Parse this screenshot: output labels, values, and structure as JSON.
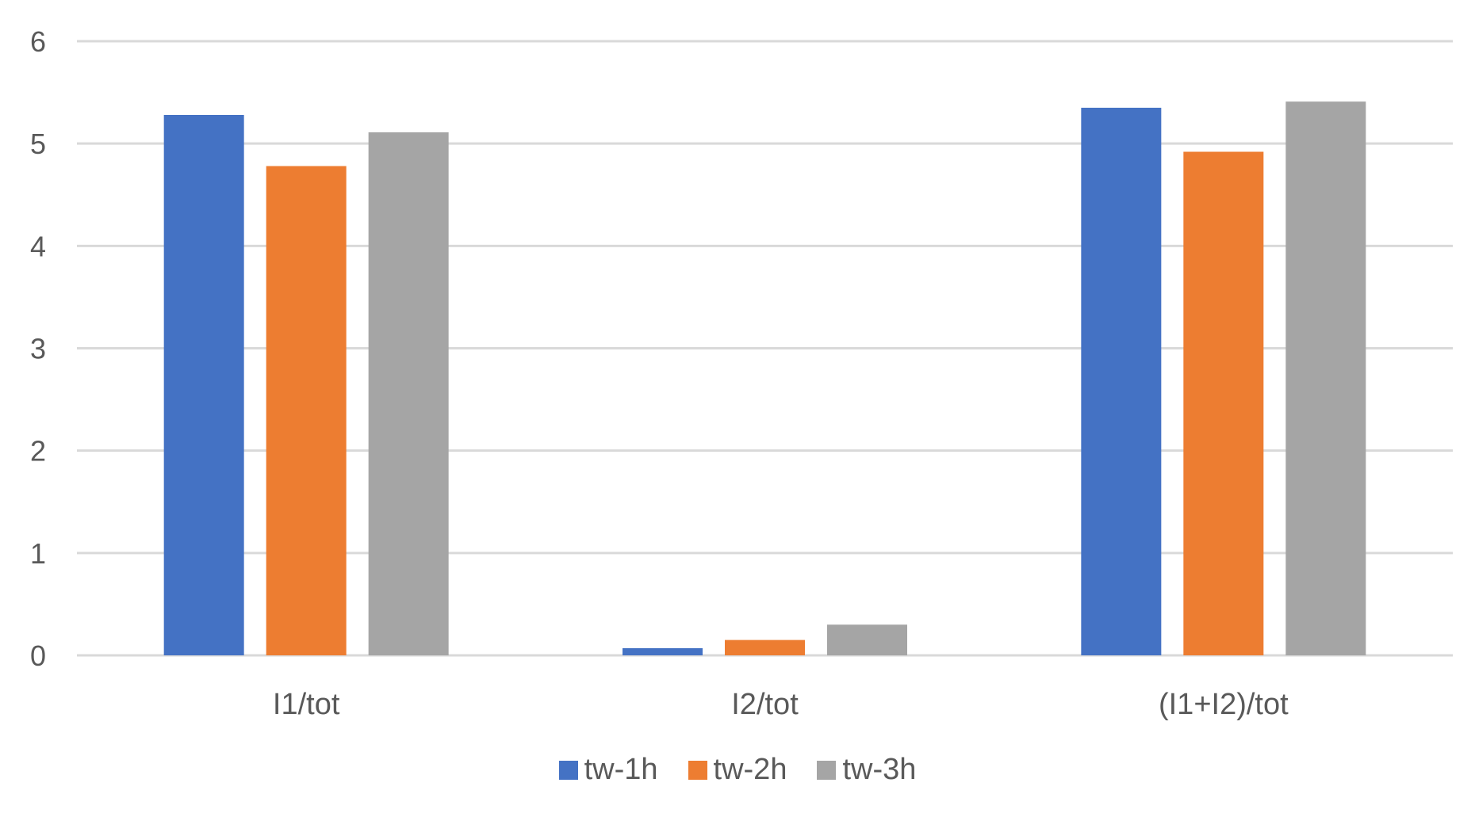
{
  "chart_data": {
    "type": "bar",
    "title": "",
    "xlabel": "",
    "ylabel": "",
    "categories": [
      "I1/tot",
      "I2/tot",
      "(I1+I2)/tot"
    ],
    "series": [
      {
        "name": "tw-1h",
        "color": "#4472c4",
        "values": [
          5.28,
          0.07,
          5.35
        ]
      },
      {
        "name": "tw-2h",
        "color": "#ed7d31",
        "values": [
          4.78,
          0.15,
          4.92
        ]
      },
      {
        "name": "tw-3h",
        "color": "#a5a5a5",
        "values": [
          5.11,
          0.3,
          5.41
        ]
      }
    ],
    "ylim": [
      0,
      6
    ],
    "yticks": [
      0,
      1,
      2,
      3,
      4,
      5,
      6
    ],
    "grid": true,
    "legend_position": "bottom-center"
  }
}
